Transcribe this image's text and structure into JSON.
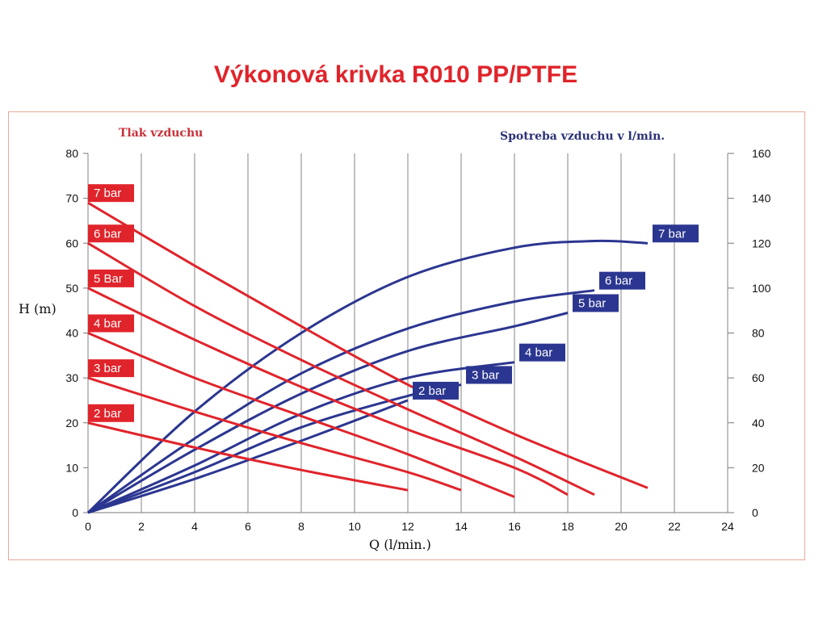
{
  "title": "Výkonová krivka R010 PP/PTFE",
  "colors": {
    "title": "#e0242b",
    "head_series": "#e0242b",
    "air_series": "#2b3690",
    "grid": "#a7a7a7",
    "frame": "#e7a99a"
  },
  "chart_data": {
    "type": "line",
    "title": "Výkonová krivka R010 PP/PTFE",
    "xlabel": "Q (l/min.)",
    "ylabel": "H (m)",
    "y2label": "Spotreba vzduchu v l/min.",
    "legend_left_title": "Tlak vzduchu",
    "xlim": [
      0,
      24
    ],
    "ylim": [
      0,
      80
    ],
    "y2lim": [
      0,
      160
    ],
    "x_ticks": [
      0,
      2,
      4,
      6,
      8,
      10,
      12,
      14,
      16,
      18,
      20,
      22,
      24
    ],
    "y_ticks": [
      0,
      10,
      20,
      30,
      40,
      50,
      60,
      70,
      80
    ],
    "y2_ticks": [
      0,
      20,
      40,
      60,
      80,
      100,
      120,
      140,
      160
    ],
    "grid": "vertical",
    "head_curves": [
      {
        "name": "2 bar",
        "axis": "left",
        "x": [
          0,
          4,
          8,
          12
        ],
        "y": [
          20,
          14.5,
          9.5,
          5
        ]
      },
      {
        "name": "3 bar",
        "axis": "left",
        "x": [
          0,
          4,
          8,
          12,
          14
        ],
        "y": [
          30,
          22.5,
          15.5,
          9,
          5
        ]
      },
      {
        "name": "4 bar",
        "axis": "left",
        "x": [
          0,
          4,
          8,
          12,
          16
        ],
        "y": [
          40,
          30,
          21.5,
          13,
          3.5
        ]
      },
      {
        "name": "5 Bar",
        "axis": "left",
        "x": [
          0,
          4,
          8,
          12,
          16,
          18
        ],
        "y": [
          50,
          38.5,
          28,
          18.5,
          10,
          4
        ]
      },
      {
        "name": "6 bar",
        "axis": "left",
        "x": [
          0,
          4,
          8,
          12,
          16,
          19
        ],
        "y": [
          60,
          46,
          34,
          23,
          12.5,
          4
        ]
      },
      {
        "name": "7 bar",
        "axis": "left",
        "x": [
          0,
          4,
          8,
          12,
          16,
          21
        ],
        "y": [
          69,
          55,
          41.5,
          28.5,
          17.5,
          5.5
        ]
      }
    ],
    "air_curves": [
      {
        "name": "2 bar",
        "axis": "right",
        "x": [
          0,
          4,
          8,
          12
        ],
        "y": [
          0,
          15,
          32,
          50
        ]
      },
      {
        "name": "3 bar",
        "axis": "right",
        "x": [
          0,
          4,
          8,
          12,
          14
        ],
        "y": [
          0,
          18,
          38,
          52,
          57
        ]
      },
      {
        "name": "4 bar",
        "axis": "right",
        "x": [
          0,
          4,
          8,
          12,
          16
        ],
        "y": [
          0,
          21,
          44,
          60,
          67
        ]
      },
      {
        "name": "5 bar",
        "axis": "right",
        "x": [
          0,
          4,
          8,
          12,
          16,
          18
        ],
        "y": [
          0,
          28,
          53,
          72,
          83,
          89
        ]
      },
      {
        "name": "6 bar",
        "axis": "right",
        "x": [
          0,
          4,
          8,
          12,
          16,
          19
        ],
        "y": [
          0,
          33,
          62,
          82,
          94,
          99
        ]
      },
      {
        "name": "7 bar",
        "axis": "right",
        "x": [
          0,
          4,
          8,
          12,
          16,
          19,
          21
        ],
        "y": [
          0,
          45,
          80,
          105,
          118,
          121,
          120
        ]
      }
    ]
  }
}
